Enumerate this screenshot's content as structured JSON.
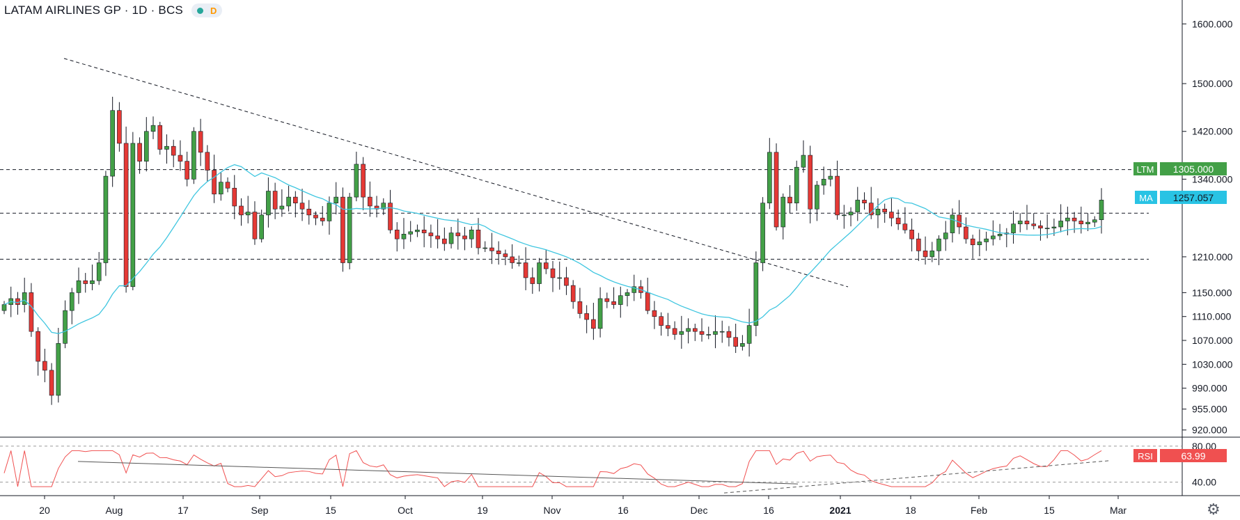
{
  "header": {
    "symbol": "LATAM AIRLINES GP",
    "interval": "1D",
    "exchange": "BCS",
    "indicator_letter": "D"
  },
  "price_axis": {
    "ticks": [
      1600,
      1500,
      1420,
      1340,
      1210,
      1150,
      1110,
      1070,
      1030,
      990,
      955,
      920
    ],
    "tick_labels": [
      "1600.000",
      "1500.000",
      "1420.000",
      "1340.000",
      "1210.000",
      "1150.000",
      "1110.000",
      "1070.000",
      "1030.000",
      "990.000",
      "955.000",
      "920.000"
    ]
  },
  "rsi_axis": {
    "ticks": [
      80,
      40
    ],
    "tick_labels": [
      "80.00",
      "40.00"
    ]
  },
  "time_axis": {
    "labels": [
      "20",
      "Aug",
      "17",
      "Sep",
      "15",
      "Oct",
      "19",
      "Nov",
      "16",
      "Dec",
      "16",
      "2021",
      "18",
      "Feb",
      "15",
      "Mar"
    ],
    "bold_label": "2021"
  },
  "badges": {
    "ltm": {
      "name": "LTM",
      "value": "1305.000",
      "color": "#43a047"
    },
    "ma": {
      "name": "MA",
      "value": "1257.057",
      "color": "#29c3e4"
    },
    "rsi": {
      "name": "RSI",
      "value": "63.99",
      "color": "#f05050"
    }
  },
  "colors": {
    "up": "#43a047",
    "down": "#e53935",
    "wick": "#131722",
    "ma": "#3fc6e0",
    "rsi": "#f05050",
    "grid_dash": "#131722"
  },
  "chart_data": {
    "type": "candlestick",
    "price_ylim": [
      908,
      1640
    ],
    "rsi_ylim": [
      25,
      90
    ],
    "ohlc_approx_close": [
      1130,
      1140,
      1130,
      1150,
      1085,
      1035,
      1020,
      978,
      1065,
      1120,
      1150,
      1170,
      1165,
      1170,
      1200,
      1345,
      1455,
      1400,
      1160,
      1400,
      1370,
      1420,
      1430,
      1390,
      1395,
      1380,
      1370,
      1340,
      1420,
      1385,
      1355,
      1315,
      1335,
      1325,
      1295,
      1280,
      1285,
      1240,
      1280,
      1320,
      1290,
      1295,
      1310,
      1300,
      1290,
      1280,
      1275,
      1270,
      1300,
      1310,
      1200,
      1310,
      1365,
      1310,
      1295,
      1290,
      1300,
      1255,
      1240,
      1248,
      1252,
      1255,
      1250,
      1245,
      1240,
      1232,
      1250,
      1245,
      1240,
      1255,
      1225,
      1225,
      1220,
      1215,
      1210,
      1200,
      1200,
      1175,
      1165,
      1200,
      1190,
      1175,
      1175,
      1162,
      1135,
      1115,
      1105,
      1090,
      1140,
      1135,
      1130,
      1145,
      1150,
      1160,
      1150,
      1120,
      1110,
      1095,
      1090,
      1080,
      1085,
      1090,
      1085,
      1080,
      1080,
      1085,
      1085,
      1075,
      1060,
      1065,
      1095,
      1200,
      1300,
      1385,
      1260,
      1310,
      1300,
      1360,
      1380,
      1290,
      1330,
      1340,
      1345,
      1280,
      1280,
      1285,
      1305,
      1300,
      1280,
      1290,
      1285,
      1275,
      1265,
      1255,
      1240,
      1220,
      1210,
      1220,
      1240,
      1250,
      1280,
      1260,
      1240,
      1230,
      1235,
      1240,
      1245,
      1248,
      1250,
      1265,
      1270,
      1265,
      1262,
      1258,
      1258,
      1260,
      1270,
      1275,
      1270,
      1265,
      1268,
      1272,
      1305
    ],
    "ma_label": "MA",
    "ma_last": 1257.057,
    "rsi_last": 63.99,
    "last_price": 1305,
    "horizontal_levels": [
      1356,
      1283,
      1206
    ],
    "x_categories": [
      "20",
      "Aug",
      "17",
      "Sep",
      "15",
      "Oct",
      "19",
      "Nov",
      "16",
      "Dec",
      "16",
      "2021",
      "18",
      "Feb",
      "15",
      "Mar"
    ]
  }
}
